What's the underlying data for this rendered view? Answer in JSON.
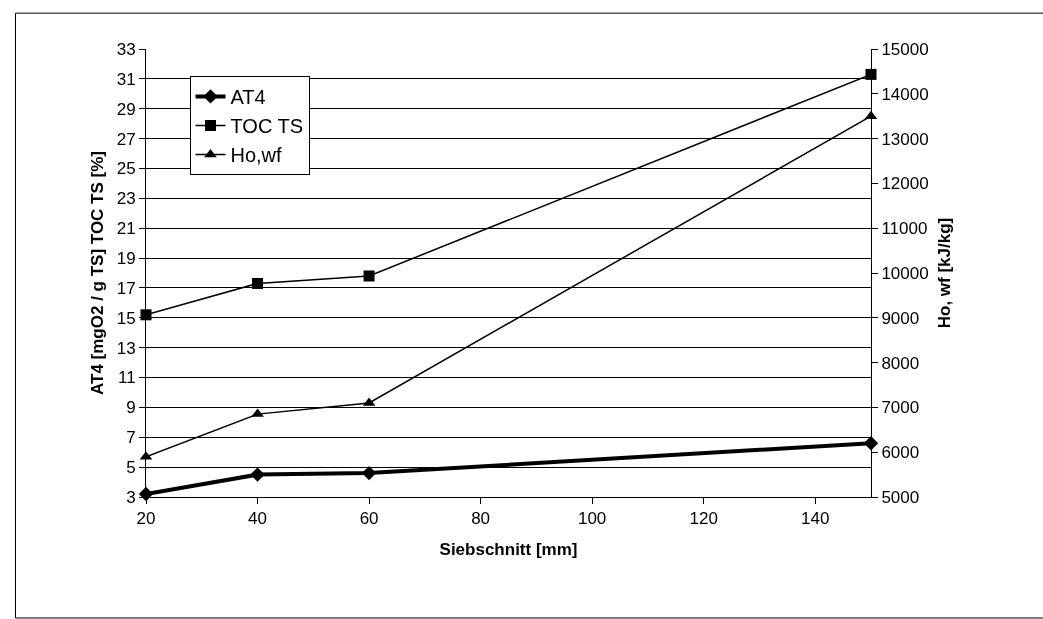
{
  "chart_data": {
    "type": "line",
    "xlabel": "Siebschnitt [mm]",
    "ylabel": "AT4 [mgO2 / g TS] TOC TS [%]",
    "y2label": "Ho, wf [kJ/kg]",
    "x": [
      20,
      40,
      60,
      150
    ],
    "series": [
      {
        "name": "AT4",
        "color": "#000000",
        "values": [
          3.2,
          4.5,
          4.6,
          6.6
        ],
        "marker": "diamond"
      },
      {
        "name": "TOC TS",
        "color": "#000000",
        "values": [
          15.2,
          17.3,
          17.8,
          31.3
        ],
        "marker": "square"
      },
      {
        "name": "Ho,wf",
        "color": "#000000",
        "values": [
          5900,
          6850,
          7100,
          13500
        ],
        "marker": "triangle",
        "axis": "y2"
      }
    ],
    "xlim": [
      20,
      150
    ],
    "xticks": [
      20,
      40,
      60,
      80,
      100,
      120,
      140
    ],
    "ylim": [
      3,
      33
    ],
    "yticks": [
      3,
      5,
      7,
      9,
      11,
      13,
      15,
      17,
      19,
      21,
      23,
      25,
      27,
      29,
      31,
      33
    ],
    "y2lim": [
      5000,
      15000
    ],
    "y2ticks": [
      5000,
      6000,
      7000,
      8000,
      9000,
      10000,
      11000,
      12000,
      13000,
      14000,
      15000
    ],
    "grid": "y",
    "legend": "top left",
    "line_style": "solid"
  }
}
